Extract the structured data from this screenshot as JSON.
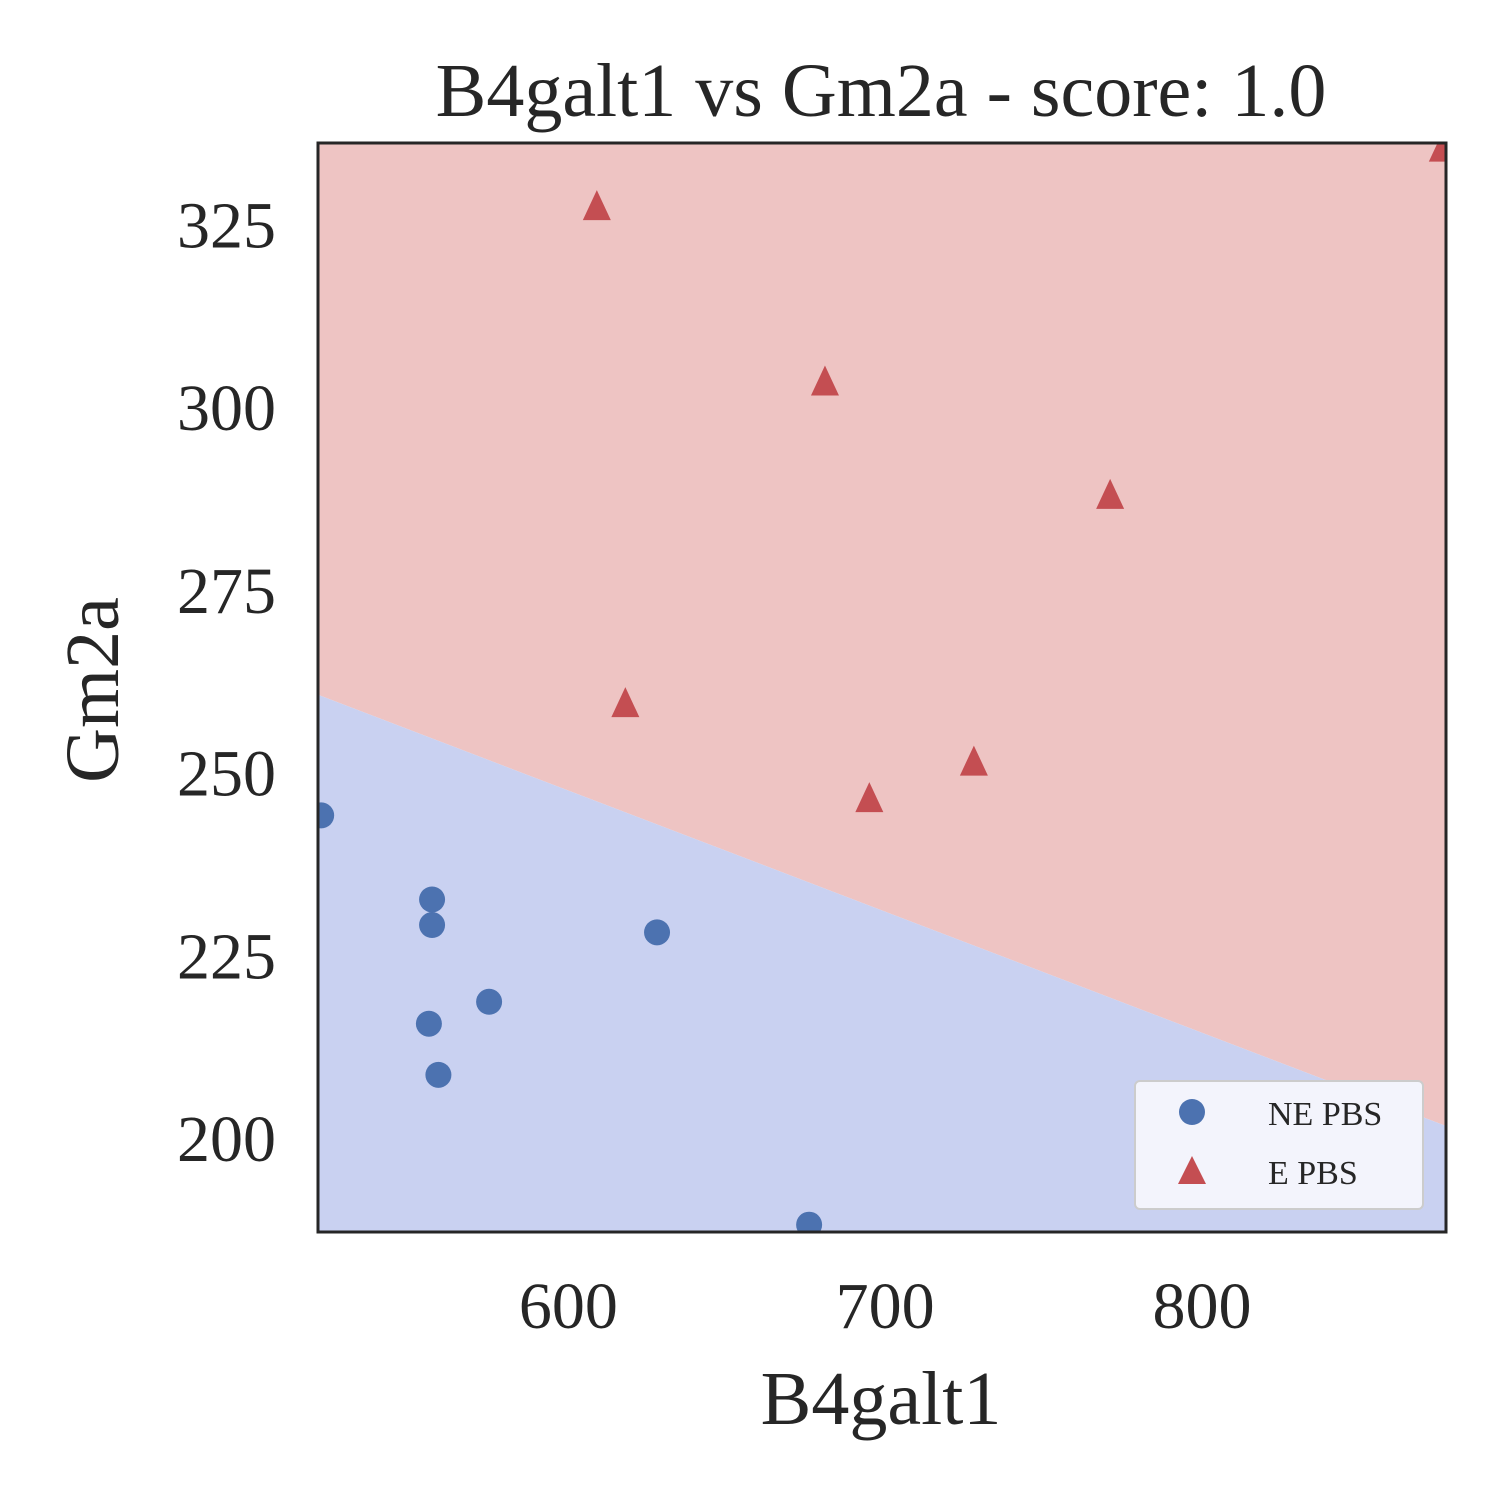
{
  "chart_data": {
    "type": "scatter",
    "title": "B4galt1 vs Gm2a - score: 1.0",
    "xlabel": "B4galt1",
    "ylabel": "Gm2a",
    "xlim": [
      521,
      877
    ],
    "ylim": [
      187,
      336
    ],
    "xticks": [
      600,
      700,
      800
    ],
    "yticks": [
      200,
      225,
      250,
      275,
      300,
      325
    ],
    "grid": false,
    "legend_position": "lower right",
    "decision_boundary": {
      "left": {
        "x": 521,
        "y": 260.5
      },
      "right": {
        "x": 877,
        "y": 201.5
      },
      "region_above_color": "#eec4c3",
      "region_below_color": "#c9d1f1"
    },
    "series": [
      {
        "name": "NE PBS",
        "marker": "circle",
        "color": "#4c72b0",
        "points": [
          {
            "x": 522,
            "y": 244.0
          },
          {
            "x": 557,
            "y": 232.5
          },
          {
            "x": 557,
            "y": 229.0
          },
          {
            "x": 556,
            "y": 215.5
          },
          {
            "x": 559,
            "y": 208.5
          },
          {
            "x": 575,
            "y": 218.5
          },
          {
            "x": 628,
            "y": 228.0
          },
          {
            "x": 676,
            "y": 188.0
          }
        ]
      },
      {
        "name": "E PBS",
        "marker": "triangle",
        "color": "#c44e52",
        "points": [
          {
            "x": 609,
            "y": 327.5
          },
          {
            "x": 618,
            "y": 259.5
          },
          {
            "x": 681,
            "y": 303.5
          },
          {
            "x": 695,
            "y": 246.5
          },
          {
            "x": 728,
            "y": 251.5
          },
          {
            "x": 771,
            "y": 288.0
          },
          {
            "x": 876,
            "y": 335.5
          }
        ]
      }
    ]
  }
}
